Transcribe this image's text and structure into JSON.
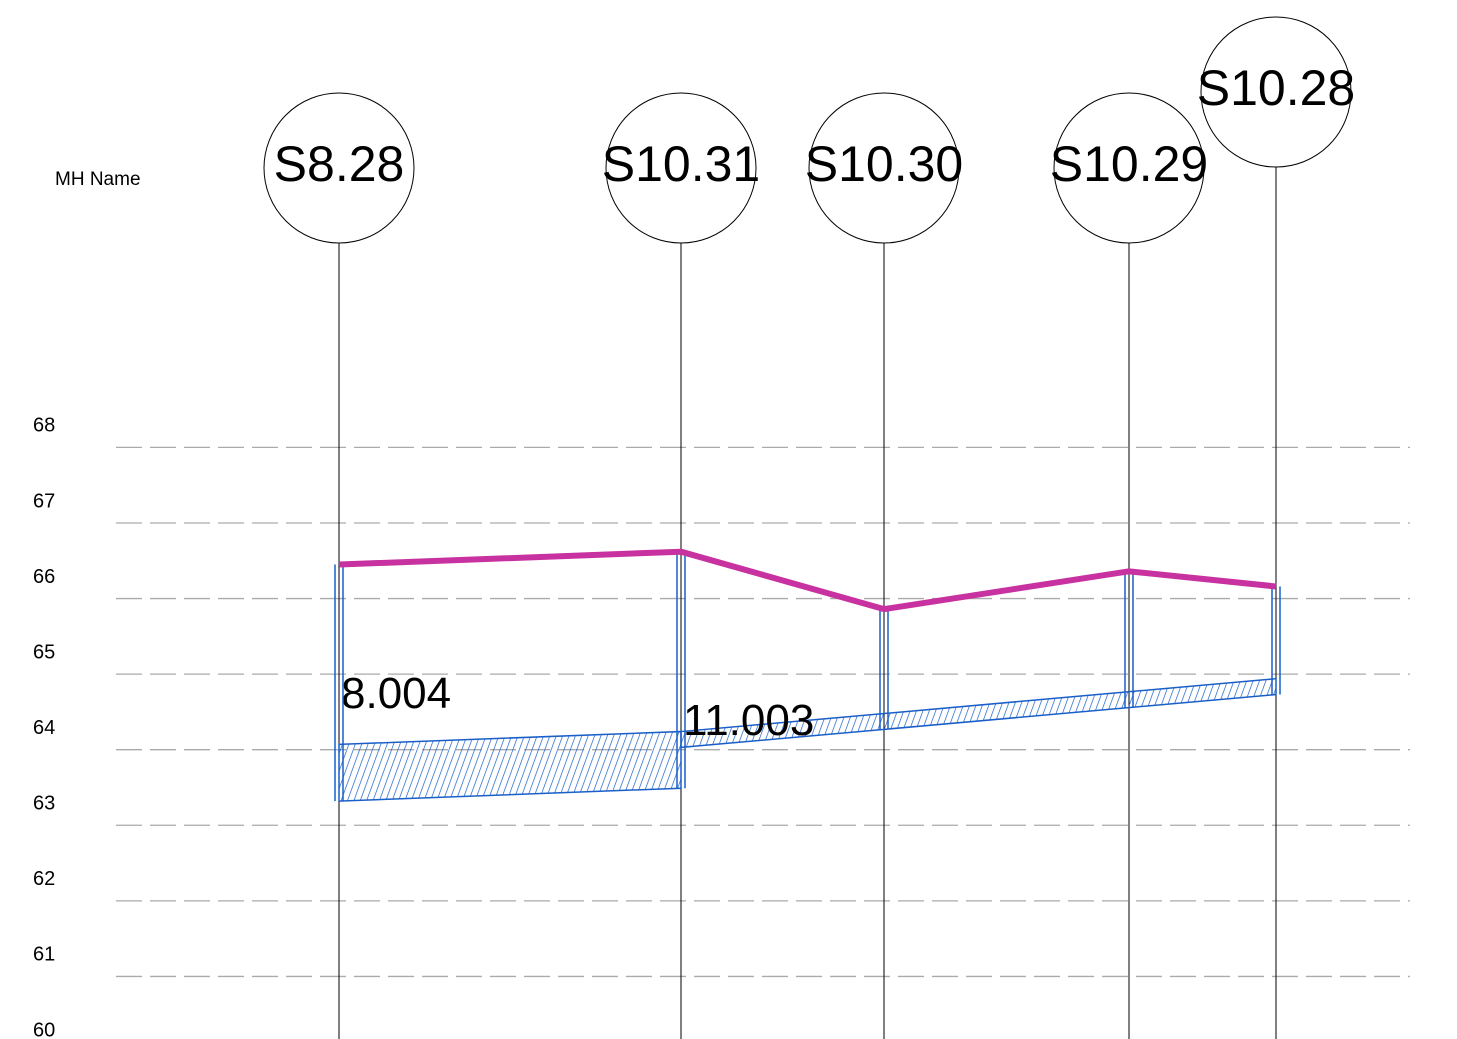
{
  "chart_data": {
    "type": "profile",
    "row_label": "MH  Name",
    "manholes": [
      "S8.28",
      "S10.31",
      "S10.30",
      "S10.29",
      "S10.28"
    ],
    "x": [
      0,
      34.2,
      54.5,
      79,
      93.7
    ],
    "xlim": [
      -33.9,
      111.8
    ],
    "ground": [
      66.45,
      66.62,
      65.86,
      66.36,
      66.16
    ],
    "ground_color": "#c832a0",
    "pipe_color": "#1a5fc8",
    "pipes": [
      {
        "name": "8.004",
        "from": 0,
        "to": 1,
        "invert_start": 63.32,
        "invert_end": 63.49,
        "diameter": 0.75
      },
      {
        "name": "11.003",
        "from": 1,
        "to": 4,
        "invert_start": 64.03,
        "invert_end": 64.73,
        "diameter": 0.21
      }
    ],
    "ylim": [
      60,
      73.92
    ],
    "yticks": [
      60,
      61,
      62,
      63,
      64,
      65,
      66,
      67,
      68
    ],
    "grid": true
  }
}
